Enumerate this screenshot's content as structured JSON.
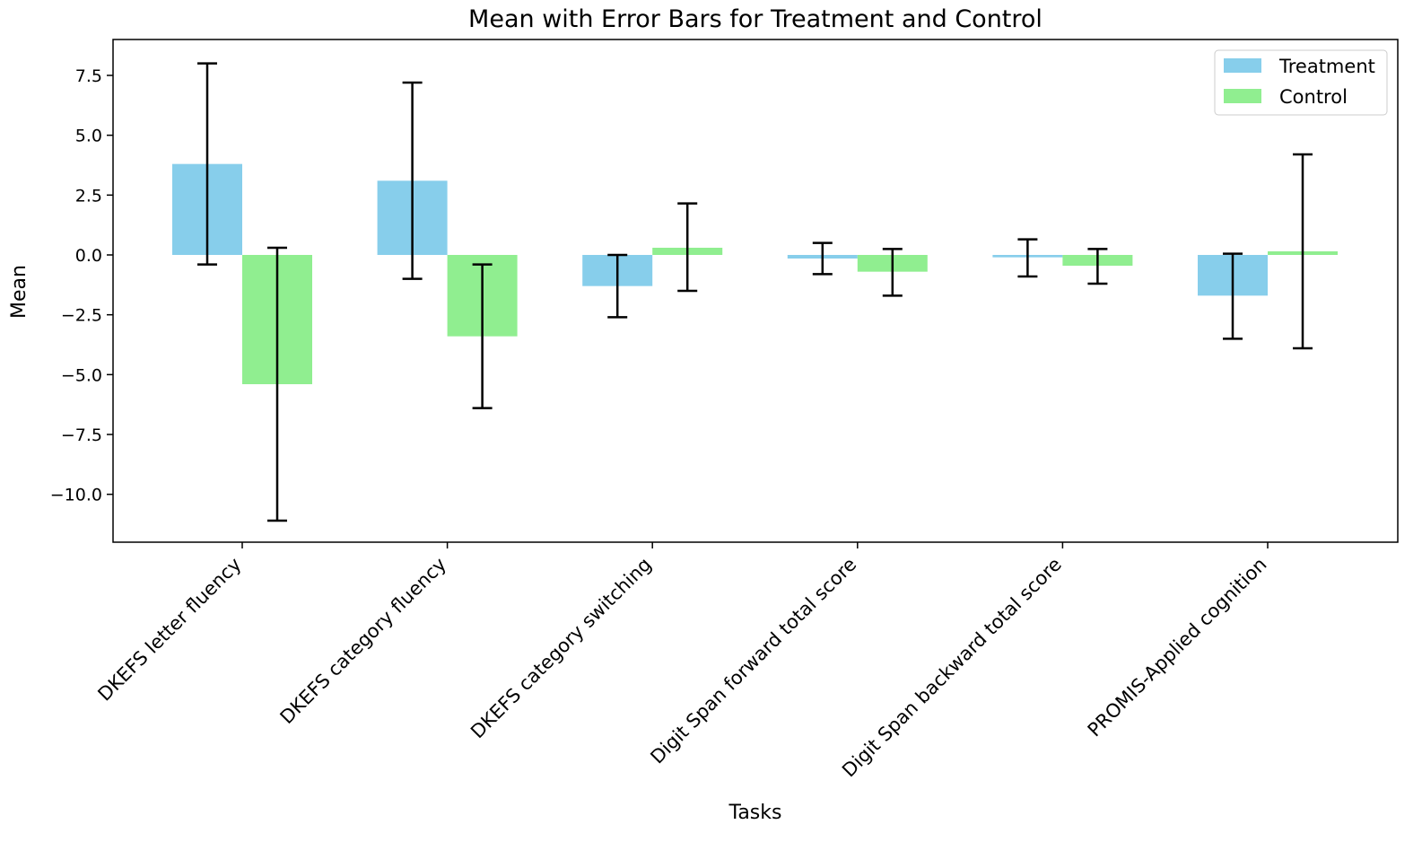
{
  "chart_data": {
    "type": "bar",
    "title": "Mean with Error Bars for Treatment and Control",
    "xlabel": "Tasks",
    "ylabel": "Mean",
    "ylim": [
      -12.0,
      9.0
    ],
    "yticks": [
      7.5,
      5.0,
      2.5,
      0.0,
      -2.5,
      -5.0,
      -7.5,
      -10.0
    ],
    "ytick_labels": [
      "7.5",
      "5.0",
      "2.5",
      "0.0",
      "−2.5",
      "−5.0",
      "−7.5",
      "−10.0"
    ],
    "categories": [
      "DKEFS letter fluency",
      "DKEFS category fluency",
      "DKEFS category switching",
      "Digit Span forward total score",
      "Digit Span backward total score",
      "PROMIS-Applied cognition"
    ],
    "series": [
      {
        "name": "Treatment",
        "color": "#87CEEB",
        "values": [
          3.8,
          3.1,
          -1.3,
          -0.15,
          -0.1,
          -1.7
        ],
        "err_low": [
          -0.4,
          -1.0,
          -2.6,
          -0.8,
          -0.9,
          -3.5
        ],
        "err_high": [
          8.0,
          7.2,
          0.0,
          0.5,
          0.65,
          0.05
        ]
      },
      {
        "name": "Control",
        "color": "#90EE90",
        "values": [
          -5.4,
          -3.4,
          0.3,
          -0.7,
          -0.45,
          0.15
        ],
        "err_low": [
          -11.1,
          -6.4,
          -1.5,
          -1.7,
          -1.2,
          -3.9
        ],
        "err_high": [
          0.3,
          -0.4,
          2.15,
          0.25,
          0.25,
          4.2
        ]
      }
    ],
    "legend": {
      "position": "top-right"
    }
  }
}
